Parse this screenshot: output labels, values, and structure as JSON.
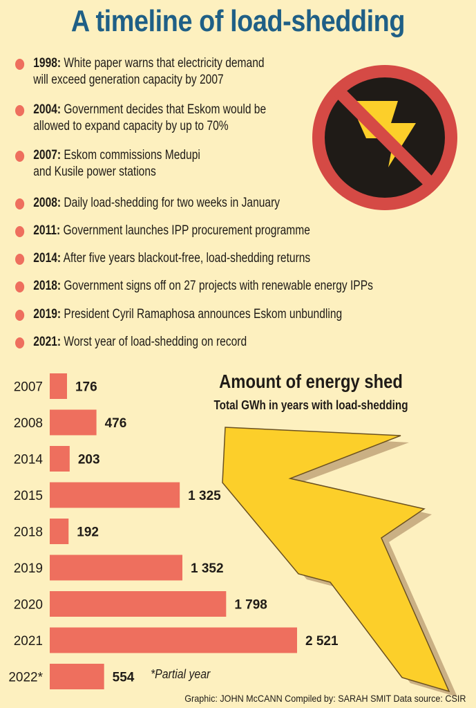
{
  "title": "A timeline of load-shedding",
  "timeline": [
    {
      "year": "1998:",
      "text": "White paper warns that electricity demand",
      "text2": "will exceed generation capacity by 2007"
    },
    {
      "year": "2004:",
      "text": "Government decides that Eskom would be",
      "text2": "allowed to expand capacity by up to 70%"
    },
    {
      "year": "2007:",
      "text": "Eskom commissions Medupi",
      "text2": "and Kusile power stations"
    },
    {
      "year": "2008:",
      "text": "Daily load-shedding for two weeks in January",
      "text2": ""
    },
    {
      "year": "2011:",
      "text": "Government launches IPP procurement programme",
      "text2": ""
    },
    {
      "year": "2014:",
      "text": "After five years blackout-free, load-shedding returns",
      "text2": ""
    },
    {
      "year": "2018:",
      "text": "Government signs off on 27 projects with renewable energy IPPs",
      "text2": ""
    },
    {
      "year": "2019:",
      "text": "President Cyril Ramaphosa announces Eskom unbundling",
      "text2": ""
    },
    {
      "year": "2021:",
      "text": "Worst year of load-shedding on record",
      "text2": ""
    }
  ],
  "icons": {
    "top": "no-electricity-icon",
    "chart": "lightning-bolt-icon"
  },
  "colors": {
    "title": "#1f5f86",
    "bar": "#ee6f5e",
    "background": "#fdf0bf",
    "bolt": "#fccf2a"
  },
  "chart_data": {
    "type": "bar",
    "orientation": "horizontal",
    "title": "Amount of energy shed",
    "subtitle": "Total GWh in years with load-shedding",
    "categories": [
      "2007",
      "2008",
      "2014",
      "2015",
      "2018",
      "2019",
      "2020",
      "2021",
      "2022*"
    ],
    "values": [
      176,
      476,
      203,
      1325,
      192,
      1352,
      1798,
      2521,
      554
    ],
    "value_labels": [
      "176",
      "476",
      "203",
      "1 325",
      "192",
      "1 352",
      "1 798",
      "2 521",
      "554"
    ],
    "xlim": [
      0,
      2521
    ],
    "grid": false,
    "note": "*Partial year"
  },
  "credits": "Graphic: JOHN McCANN  Compiled by: SARAH SMIT  Data source: CSIR"
}
